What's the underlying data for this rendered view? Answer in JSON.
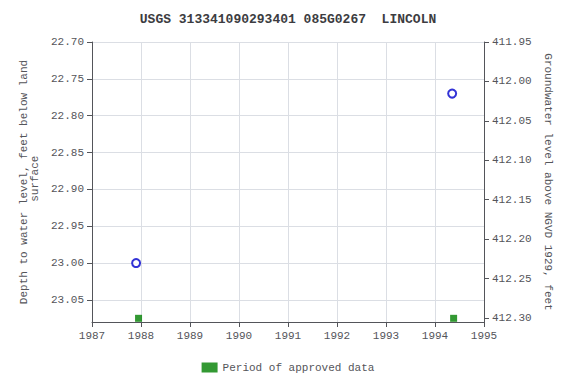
{
  "chart_data": {
    "type": "scatter",
    "title": "USGS 313341090293401 085G0267  LINCOLN",
    "ylabel": "Depth to water level, feet below land\n surface",
    "y2label": "Groundwater level above NGVD 1929, feet",
    "xlim": [
      1987,
      1995
    ],
    "xticks": [
      1987,
      1988,
      1989,
      1990,
      1991,
      1992,
      1993,
      1994,
      1995
    ],
    "ylim": [
      23.08,
      22.7
    ],
    "yticks": [
      {
        "value": 22.7,
        "label": "22.70"
      },
      22.75,
      {
        "value": 22.8,
        "label": "22.80"
      },
      22.85,
      {
        "value": 22.9,
        "label": "22.90"
      },
      22.95,
      {
        "value": 23.0,
        "label": "23.00"
      },
      23.05
    ],
    "y2lim": [
      412.305,
      411.95
    ],
    "y2ticks": [
      411.95,
      {
        "value": 412.0,
        "label": "412.00"
      },
      412.05,
      {
        "value": 412.1,
        "label": "412.10"
      },
      412.15,
      {
        "value": 412.2,
        "label": "412.20"
      },
      412.25,
      {
        "value": 412.3,
        "label": "412.30"
      }
    ],
    "grid": true,
    "legend": "bottom",
    "series": [
      {
        "color": "#0000cc",
        "marker": "circle",
        "x": [
          1987.9,
          1994.35
        ],
        "values": [
          23.0,
          22.77
        ]
      },
      {
        "name": "Period of approved data",
        "color": "#008000",
        "marker": "square",
        "x": [
          1987.95,
          1994.38
        ],
        "values": [
          23.075,
          23.075
        ]
      }
    ]
  }
}
